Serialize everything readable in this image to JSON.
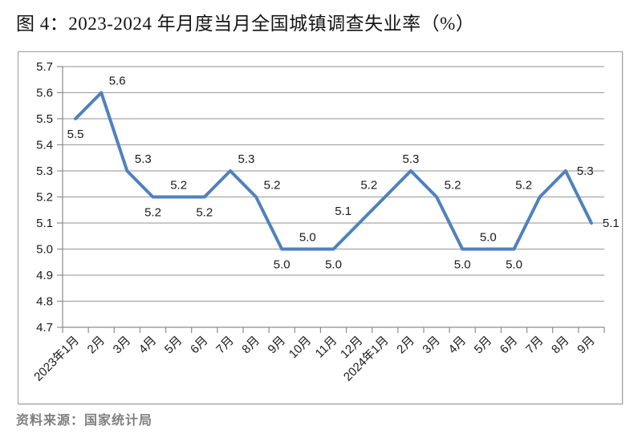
{
  "title": "图 4：2023-2024 年月度当月全国城镇调查失业率（%）",
  "source": "资料来源：国家统计局",
  "colors": {
    "line": "#4f81bd",
    "grid": "#a6a6a6",
    "axis": "#8c8c8c",
    "text": "#1a1a1a",
    "source_text": "#7f7f7f",
    "frame_border": "#9e9e9e"
  },
  "chart_data": {
    "type": "line",
    "title": "图 4：2023-2024 年月度当月全国城镇调查失业率（%）",
    "xlabel": "",
    "ylabel": "",
    "categories": [
      "2023年1月",
      "2月",
      "3月",
      "4月",
      "5月",
      "6月",
      "7月",
      "8月",
      "9月",
      "10月",
      "11月",
      "12月",
      "2024年1月",
      "2月",
      "3月",
      "4月",
      "5月",
      "6月",
      "7月",
      "8月",
      "9月"
    ],
    "values": [
      5.5,
      5.6,
      5.3,
      5.2,
      5.2,
      5.2,
      5.3,
      5.2,
      5.0,
      5.0,
      5.0,
      5.1,
      5.2,
      5.3,
      5.2,
      5.0,
      5.0,
      5.0,
      5.2,
      5.3,
      5.1
    ],
    "ylim": [
      4.7,
      5.7
    ],
    "ytick_step": 0.1,
    "grid": true,
    "legend_position": "none",
    "data_labels": true,
    "label_positions": [
      "below",
      "above-right",
      "above-right",
      "below",
      "above",
      "below",
      "above-right",
      "above-right",
      "below",
      "above",
      "below",
      "above-left",
      "above-left",
      "above",
      "above-right",
      "below",
      "above",
      "below",
      "above-left",
      "right",
      "right"
    ],
    "x_label_rotation_deg": -45
  }
}
